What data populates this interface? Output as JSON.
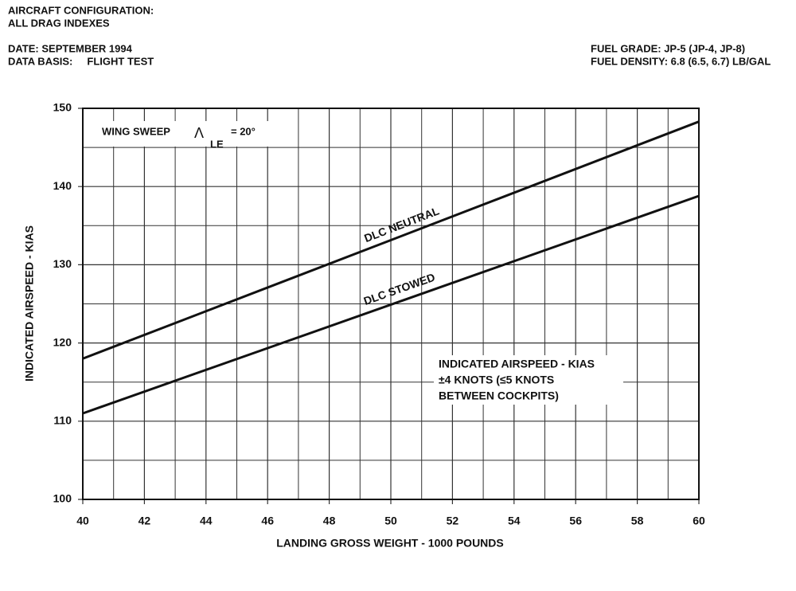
{
  "header": {
    "left": [
      "AIRCRAFT CONFIGURATION:",
      "ALL DRAG INDEXES",
      "DATE: SEPTEMBER 1994",
      "DATA BASIS:     FLIGHT TEST"
    ],
    "right": [
      "FUEL GRADE: JP-5 (JP-4, JP-8)",
      "FUEL DENSITY: 6.8 (6.5, 6.7) LB/GAL"
    ]
  },
  "chart_data": {
    "type": "line",
    "x_label": "LANDING GROSS WEIGHT - 1000 POUNDS",
    "y_label": "INDICATED AIRSPEED - KIAS",
    "x": [
      40,
      60
    ],
    "series": [
      {
        "name": "DLC NEUTRAL",
        "color": "#111111",
        "values": [
          118,
          148.3
        ]
      },
      {
        "name": "DLC STOWED",
        "color": "#111111",
        "values": [
          111,
          138.8
        ]
      }
    ],
    "xlim": [
      40,
      60
    ],
    "xticks": [
      40,
      42,
      44,
      46,
      48,
      50,
      52,
      54,
      56,
      58,
      60
    ],
    "x_minor_ticks": [
      41,
      43,
      45,
      47,
      49,
      51,
      53,
      55,
      57,
      59
    ],
    "ylim": [
      100,
      150
    ],
    "yticks": [
      100,
      110,
      120,
      130,
      140,
      150
    ],
    "y_minor_ticks": [
      105,
      115,
      125,
      135,
      145
    ],
    "grid": true,
    "annotations": {
      "wing_sweep": [
        "WING SWEEP",
        "Λ",
        "LE",
        "= 20°"
      ],
      "note": [
        "INDICATED AIRSPEED - KIAS",
        "±4 KNOTS (≤5 KNOTS",
        "BETWEEN COCKPITS)"
      ]
    }
  }
}
